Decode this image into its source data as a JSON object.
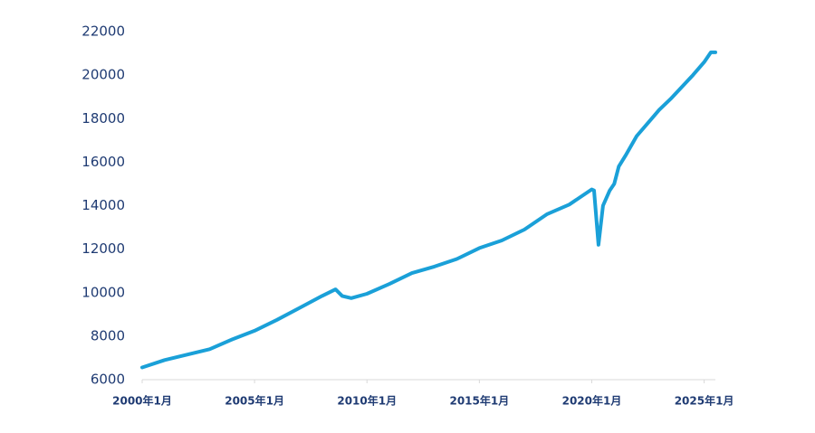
{
  "chart_data": {
    "type": "line",
    "x": [
      2000.0,
      2001.0,
      2002.0,
      2003.0,
      2004.0,
      2005.0,
      2006.0,
      2007.0,
      2008.0,
      2008.6,
      2008.9,
      2009.3,
      2010.0,
      2011.0,
      2012.0,
      2013.0,
      2014.0,
      2015.0,
      2016.0,
      2017.0,
      2018.0,
      2019.0,
      2019.5,
      2020.0,
      2020.1,
      2020.3,
      2020.5,
      2020.8,
      2021.0,
      2021.2,
      2021.5,
      2022.0,
      2022.5,
      2023.0,
      2023.5,
      2024.0,
      2024.5,
      2025.0,
      2025.3,
      2025.5
    ],
    "series": [
      {
        "color": "#1aa0d8",
        "values": [
          6560,
          6900,
          7150,
          7400,
          7850,
          8250,
          8750,
          9300,
          9850,
          10150,
          9850,
          9750,
          9950,
          10400,
          10900,
          11200,
          11550,
          12050,
          12400,
          12900,
          13600,
          14050,
          14400,
          14750,
          14700,
          12200,
          14000,
          14700,
          15000,
          15800,
          16300,
          17200,
          17800,
          18400,
          18900,
          19450,
          20000,
          20600,
          21050,
          21050
        ]
      }
    ],
    "xlim": [
      2000,
      2025.5
    ],
    "xticks": [
      {
        "value": 2000,
        "label": "2000年1月"
      },
      {
        "value": 2005,
        "label": "2005年1月"
      },
      {
        "value": 2010,
        "label": "2010年1月"
      },
      {
        "value": 2015,
        "label": "2015年1月"
      },
      {
        "value": 2020,
        "label": "2020年1月"
      },
      {
        "value": 2025,
        "label": "2025年1月"
      }
    ],
    "ylim": [
      6000,
      22000
    ],
    "yticks": [
      6000,
      8000,
      10000,
      12000,
      14000,
      16000,
      18000,
      20000,
      22000
    ],
    "grid": false
  }
}
